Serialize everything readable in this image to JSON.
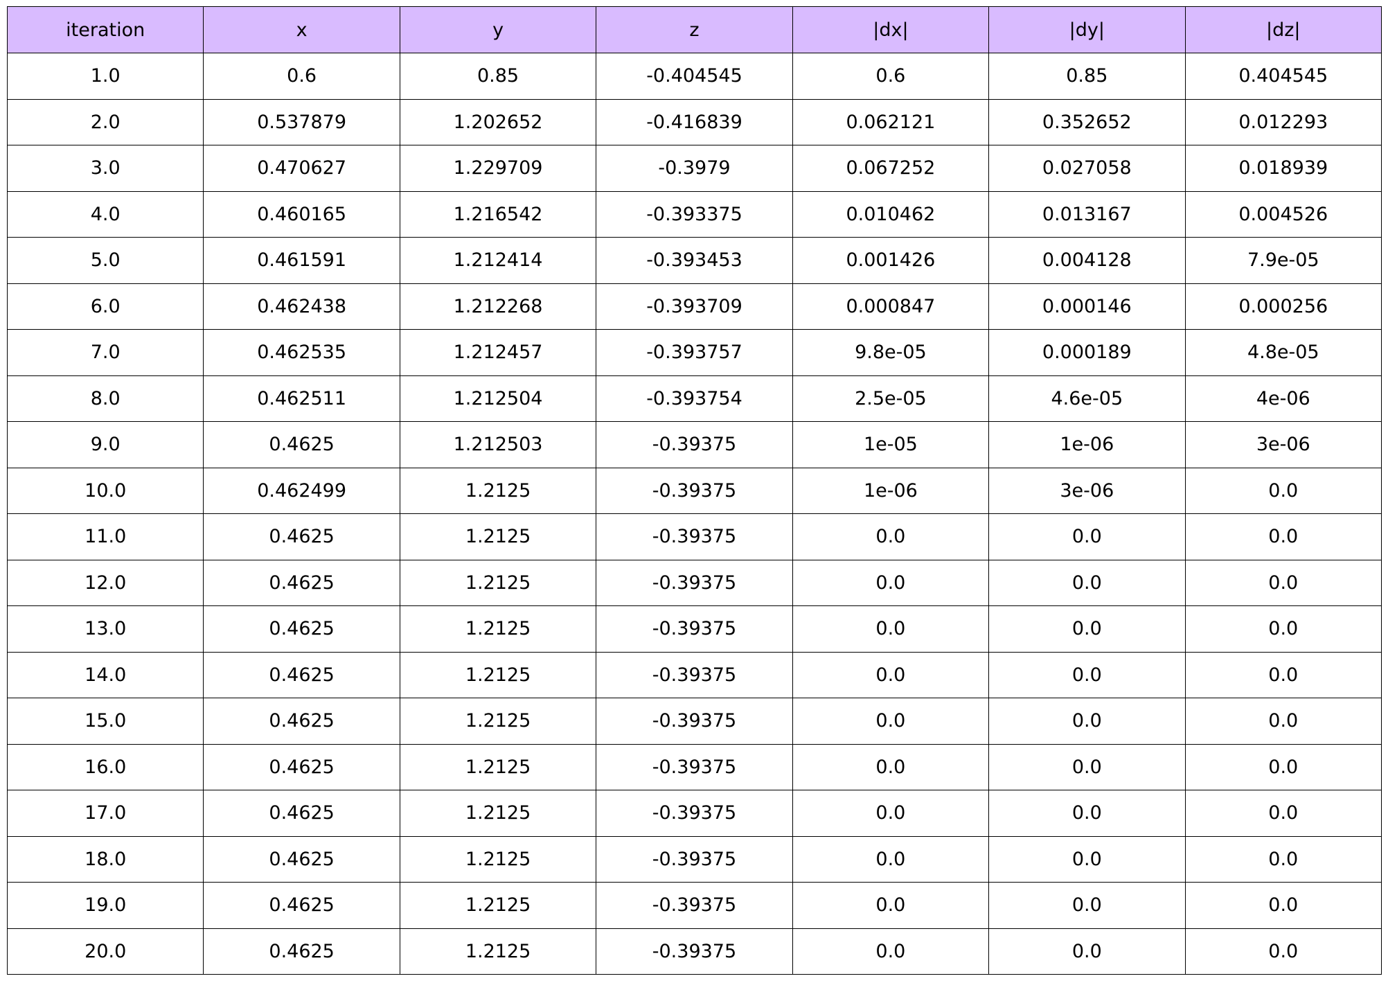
{
  "chart_data": {
    "type": "table",
    "header_color": "#d9bbff",
    "border_color": "#000000",
    "columns": [
      "iteration",
      "x",
      "y",
      "z",
      "|dx|",
      "|dy|",
      "|dz|"
    ],
    "rows": [
      [
        "1.0",
        "0.6",
        "0.85",
        "-0.404545",
        "0.6",
        "0.85",
        "0.404545"
      ],
      [
        "2.0",
        "0.537879",
        "1.202652",
        "-0.416839",
        "0.062121",
        "0.352652",
        "0.012293"
      ],
      [
        "3.0",
        "0.470627",
        "1.229709",
        "-0.3979",
        "0.067252",
        "0.027058",
        "0.018939"
      ],
      [
        "4.0",
        "0.460165",
        "1.216542",
        "-0.393375",
        "0.010462",
        "0.013167",
        "0.004526"
      ],
      [
        "5.0",
        "0.461591",
        "1.212414",
        "-0.393453",
        "0.001426",
        "0.004128",
        "7.9e-05"
      ],
      [
        "6.0",
        "0.462438",
        "1.212268",
        "-0.393709",
        "0.000847",
        "0.000146",
        "0.000256"
      ],
      [
        "7.0",
        "0.462535",
        "1.212457",
        "-0.393757",
        "9.8e-05",
        "0.000189",
        "4.8e-05"
      ],
      [
        "8.0",
        "0.462511",
        "1.212504",
        "-0.393754",
        "2.5e-05",
        "4.6e-05",
        "4e-06"
      ],
      [
        "9.0",
        "0.4625",
        "1.212503",
        "-0.39375",
        "1e-05",
        "1e-06",
        "3e-06"
      ],
      [
        "10.0",
        "0.462499",
        "1.2125",
        "-0.39375",
        "1e-06",
        "3e-06",
        "0.0"
      ],
      [
        "11.0",
        "0.4625",
        "1.2125",
        "-0.39375",
        "0.0",
        "0.0",
        "0.0"
      ],
      [
        "12.0",
        "0.4625",
        "1.2125",
        "-0.39375",
        "0.0",
        "0.0",
        "0.0"
      ],
      [
        "13.0",
        "0.4625",
        "1.2125",
        "-0.39375",
        "0.0",
        "0.0",
        "0.0"
      ],
      [
        "14.0",
        "0.4625",
        "1.2125",
        "-0.39375",
        "0.0",
        "0.0",
        "0.0"
      ],
      [
        "15.0",
        "0.4625",
        "1.2125",
        "-0.39375",
        "0.0",
        "0.0",
        "0.0"
      ],
      [
        "16.0",
        "0.4625",
        "1.2125",
        "-0.39375",
        "0.0",
        "0.0",
        "0.0"
      ],
      [
        "17.0",
        "0.4625",
        "1.2125",
        "-0.39375",
        "0.0",
        "0.0",
        "0.0"
      ],
      [
        "18.0",
        "0.4625",
        "1.2125",
        "-0.39375",
        "0.0",
        "0.0",
        "0.0"
      ],
      [
        "19.0",
        "0.4625",
        "1.2125",
        "-0.39375",
        "0.0",
        "0.0",
        "0.0"
      ],
      [
        "20.0",
        "0.4625",
        "1.2125",
        "-0.39375",
        "0.0",
        "0.0",
        "0.0"
      ]
    ]
  }
}
